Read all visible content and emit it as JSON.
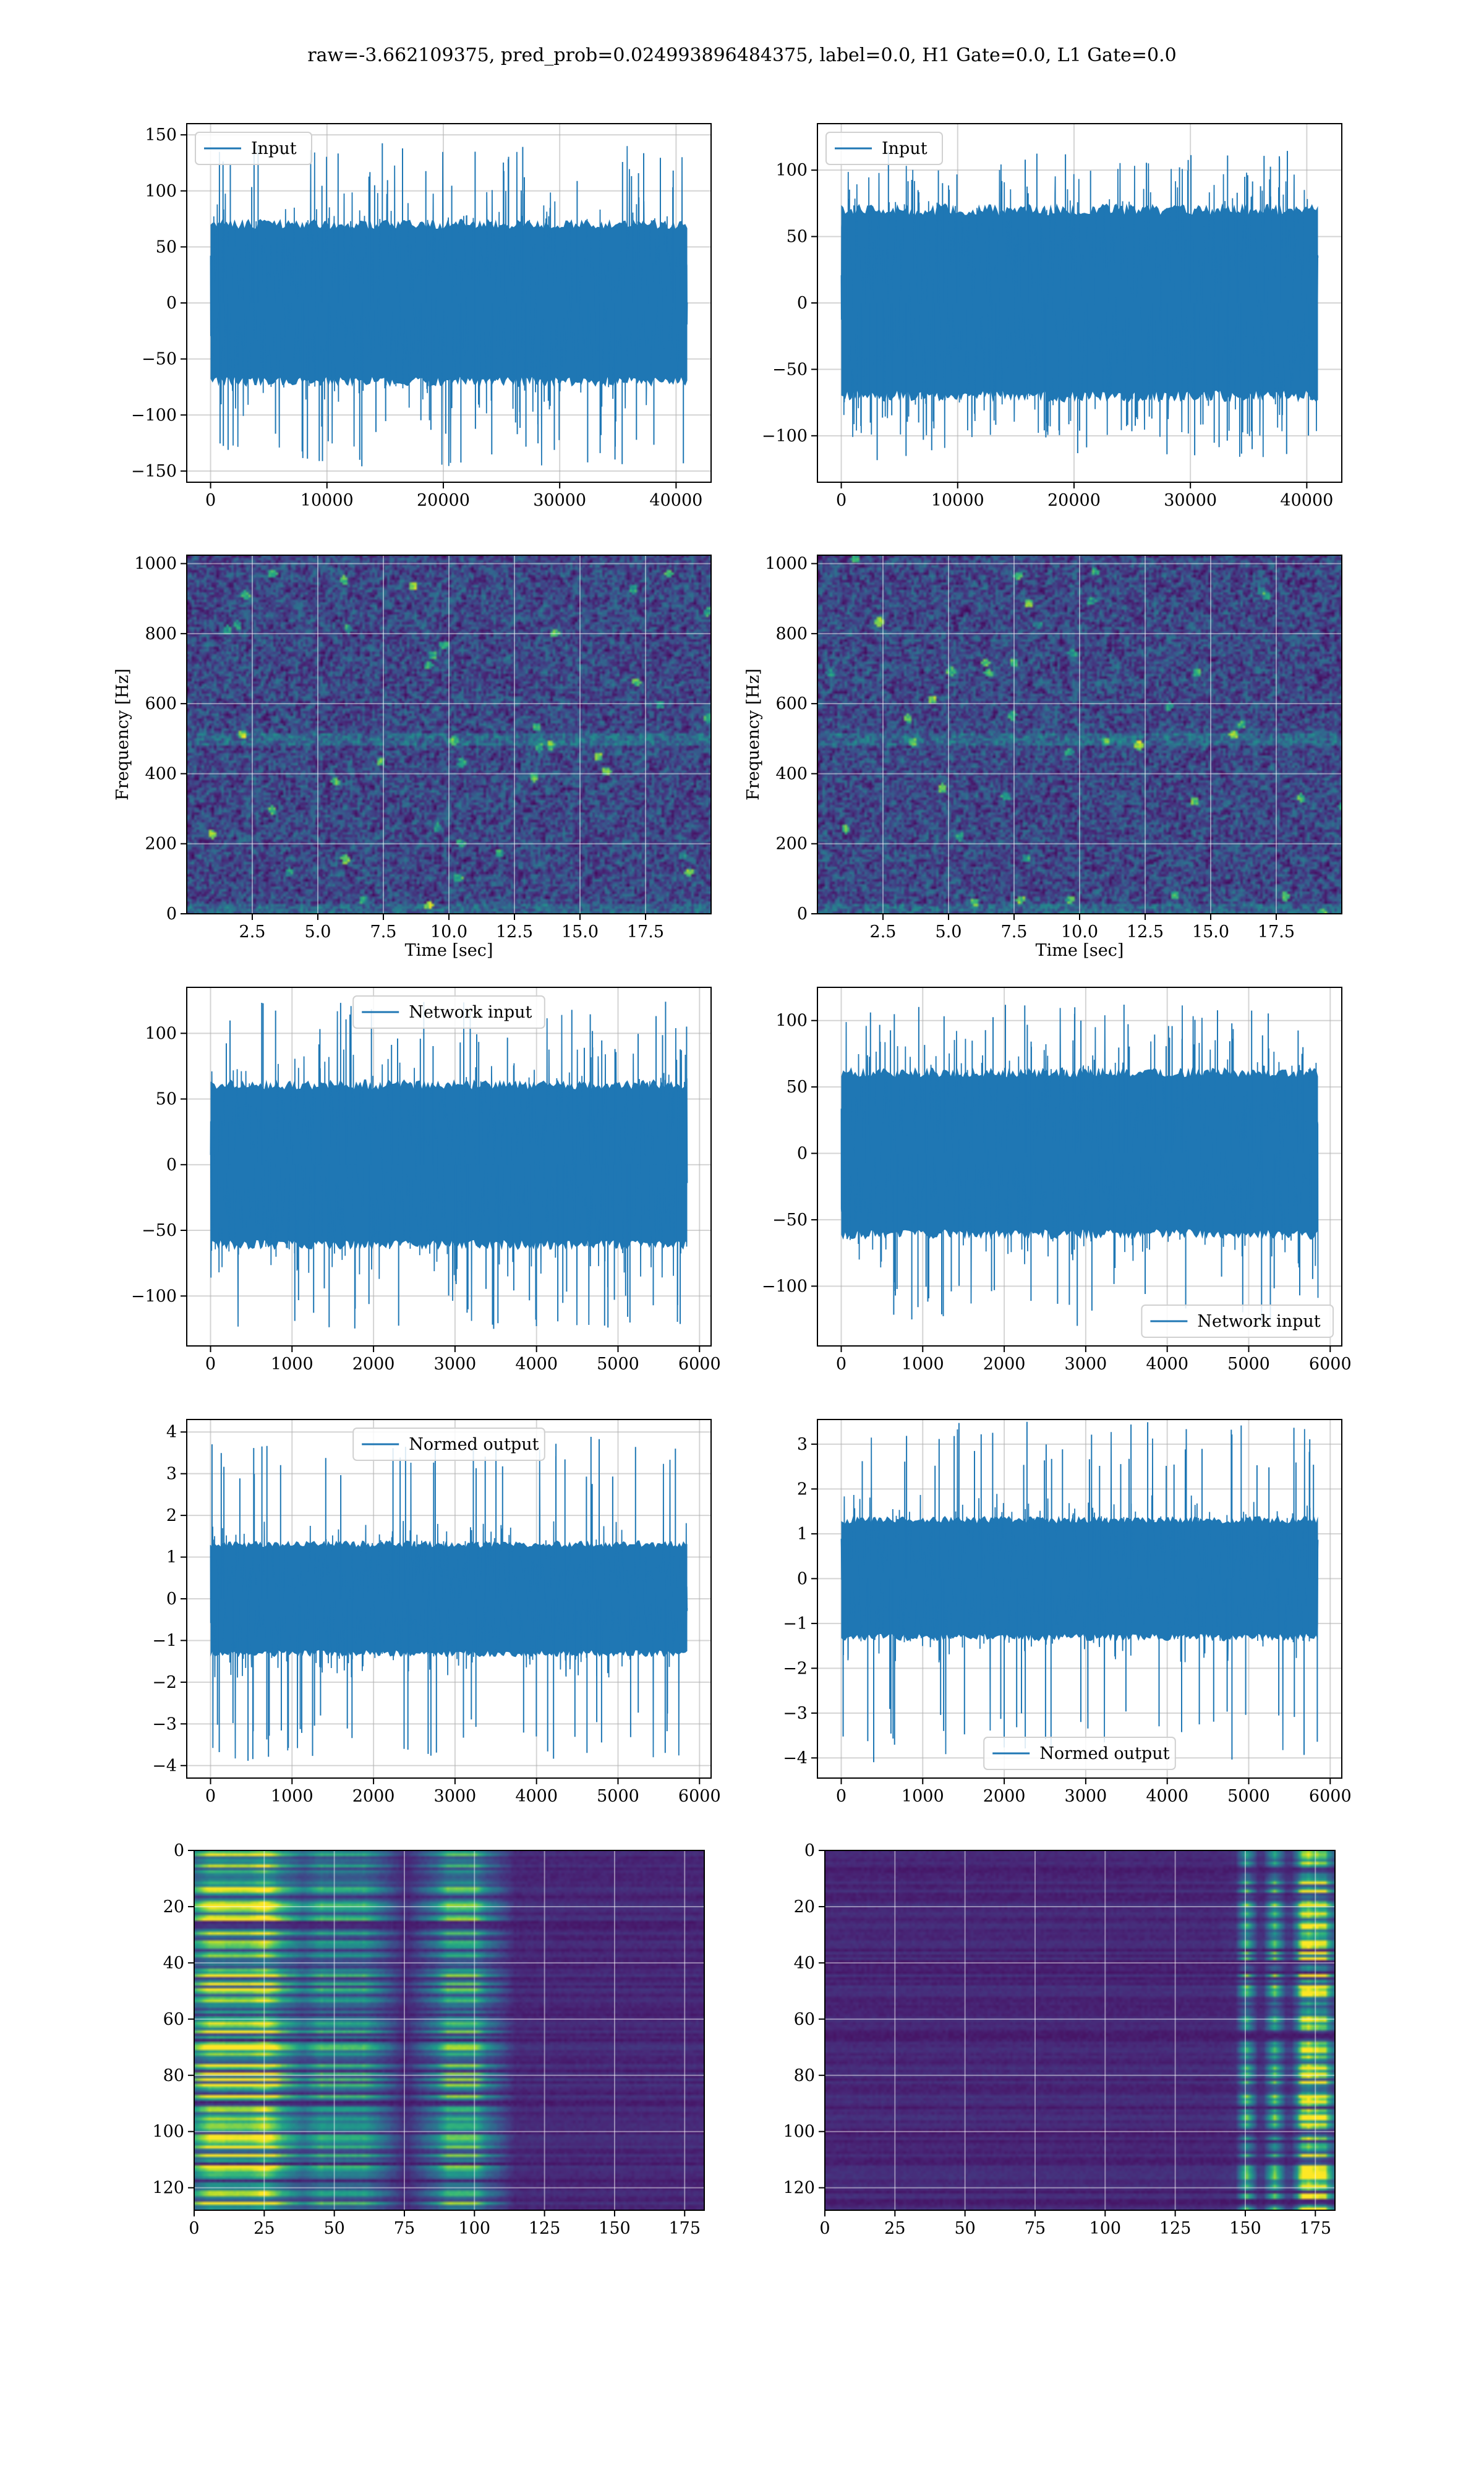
{
  "figure": {
    "title": "raw=-3.662109375, pred_prob=0.024993896484375, label=0.0, H1 Gate=0.0, L1 Gate=0.0",
    "colors": {
      "line": "#1f77b4",
      "grid": "#b0b0b0",
      "viridis": [
        "#440154",
        "#482878",
        "#3e4989",
        "#31688e",
        "#26828e",
        "#1f9e89",
        "#35b779",
        "#6ece58",
        "#b5de2b",
        "#fde725"
      ]
    }
  },
  "chart_data": [
    {
      "id": "input-h1",
      "type": "line",
      "legend_loc": "upper left",
      "grid": true,
      "series": [
        {
          "name": "Input",
          "color": "#1f77b4",
          "x_range": [
            0,
            40960
          ],
          "n_samples": 40960,
          "typical_band": [
            -75,
            75
          ],
          "spike_extremes": [
            -148,
            145
          ]
        }
      ],
      "xlim": [
        -2048,
        43008
      ],
      "ylim": [
        -160,
        160
      ],
      "xticks": [
        0,
        10000,
        20000,
        30000,
        40000
      ],
      "yticks": [
        -150,
        -100,
        -50,
        0,
        50,
        100,
        150
      ],
      "xlabel": "",
      "ylabel": ""
    },
    {
      "id": "input-l1",
      "type": "line",
      "legend_loc": "upper left",
      "grid": true,
      "series": [
        {
          "name": "Input",
          "color": "#1f77b4",
          "x_range": [
            0,
            40960
          ],
          "n_samples": 40960,
          "typical_band": [
            -75,
            75
          ],
          "spike_extremes": [
            -120,
            115
          ]
        }
      ],
      "xlim": [
        -2048,
        43008
      ],
      "ylim": [
        -135,
        135
      ],
      "xticks": [
        0,
        10000,
        20000,
        30000,
        40000
      ],
      "yticks": [
        -100,
        -50,
        0,
        50,
        100
      ],
      "xlabel": "",
      "ylabel": ""
    },
    {
      "id": "spectrogram-h1",
      "type": "heatmap",
      "colormap": "viridis",
      "grid": true,
      "x_range": [
        0,
        20
      ],
      "y_range": [
        0,
        1024
      ],
      "xlim": [
        0,
        20
      ],
      "ylim": [
        0,
        1024
      ],
      "xticks": [
        2.5,
        5.0,
        7.5,
        10.0,
        12.5,
        15.0,
        17.5
      ],
      "yticks": [
        0,
        200,
        400,
        600,
        800,
        1000
      ],
      "xlabel": "Time [sec]",
      "ylabel": "Frequency [Hz]"
    },
    {
      "id": "spectrogram-l1",
      "type": "heatmap",
      "colormap": "viridis",
      "grid": true,
      "x_range": [
        0,
        20
      ],
      "y_range": [
        0,
        1024
      ],
      "xlim": [
        0,
        20
      ],
      "ylim": [
        0,
        1024
      ],
      "xticks": [
        2.5,
        5.0,
        7.5,
        10.0,
        12.5,
        15.0,
        17.5
      ],
      "yticks": [
        0,
        200,
        400,
        600,
        800,
        1000
      ],
      "xlabel": "Time [sec]",
      "ylabel": "Frequency [Hz]"
    },
    {
      "id": "network-input-h1",
      "type": "line",
      "legend_loc": "upper center",
      "grid": true,
      "series": [
        {
          "name": "Network input",
          "color": "#1f77b4",
          "x_range": [
            0,
            5850
          ],
          "n_samples": 5850,
          "typical_band": [
            -65,
            65
          ],
          "spike_extremes": [
            -125,
            125
          ]
        }
      ],
      "xlim": [
        -292,
        6142
      ],
      "ylim": [
        -138,
        135
      ],
      "xticks": [
        0,
        1000,
        2000,
        3000,
        4000,
        5000,
        6000
      ],
      "yticks": [
        -100,
        -50,
        0,
        50,
        100
      ],
      "xlabel": "",
      "ylabel": ""
    },
    {
      "id": "network-input-l1",
      "type": "line",
      "legend_loc": "lower right",
      "grid": true,
      "series": [
        {
          "name": "Network input",
          "color": "#1f77b4",
          "x_range": [
            0,
            5850
          ],
          "n_samples": 5850,
          "typical_band": [
            -65,
            65
          ],
          "spike_extremes": [
            -130,
            112
          ]
        }
      ],
      "xlim": [
        -292,
        6142
      ],
      "ylim": [
        -145,
        125
      ],
      "xticks": [
        0,
        1000,
        2000,
        3000,
        4000,
        5000,
        6000
      ],
      "yticks": [
        -100,
        -50,
        0,
        50,
        100
      ],
      "xlabel": "",
      "ylabel": ""
    },
    {
      "id": "normed-output-h1",
      "type": "line",
      "legend_loc": "upper center",
      "grid": true,
      "series": [
        {
          "name": "Normed output",
          "color": "#1f77b4",
          "x_range": [
            0,
            5850
          ],
          "n_samples": 5850,
          "typical_band": [
            -1.4,
            1.4
          ],
          "spike_extremes": [
            -3.9,
            3.9
          ]
        }
      ],
      "xlim": [
        -292,
        6142
      ],
      "ylim": [
        -4.3,
        4.3
      ],
      "xticks": [
        0,
        1000,
        2000,
        3000,
        4000,
        5000,
        6000
      ],
      "yticks": [
        -4,
        -3,
        -2,
        -1,
        0,
        1,
        2,
        3,
        4
      ],
      "xlabel": "",
      "ylabel": ""
    },
    {
      "id": "normed-output-l1",
      "type": "line",
      "legend_loc": "lower center",
      "grid": true,
      "series": [
        {
          "name": "Normed output",
          "color": "#1f77b4",
          "x_range": [
            0,
            5850
          ],
          "n_samples": 5850,
          "typical_band": [
            -1.4,
            1.4
          ],
          "spike_extremes": [
            -4.1,
            3.5
          ]
        }
      ],
      "xlim": [
        -292,
        6142
      ],
      "ylim": [
        -4.45,
        3.55
      ],
      "xticks": [
        0,
        1000,
        2000,
        3000,
        4000,
        5000,
        6000
      ],
      "yticks": [
        -4,
        -3,
        -2,
        -1,
        0,
        1,
        2,
        3
      ],
      "xlabel": "",
      "ylabel": ""
    },
    {
      "id": "feature-map-h1",
      "type": "heatmap",
      "colormap": "viridis",
      "grid": true,
      "rows": 128,
      "cols": 182,
      "hot_columns": [
        5,
        10,
        24,
        25,
        45,
        60,
        90,
        100
      ],
      "hot_side": "left",
      "xlim": [
        0,
        182
      ],
      "ylim": [
        128,
        0
      ],
      "xticks": [
        0,
        25,
        50,
        75,
        100,
        125,
        150,
        175
      ],
      "yticks": [
        0,
        20,
        40,
        60,
        80,
        100,
        120
      ],
      "xlabel": "",
      "ylabel": ""
    },
    {
      "id": "feature-map-l1",
      "type": "heatmap",
      "colormap": "viridis",
      "grid": true,
      "rows": 128,
      "cols": 182,
      "hot_columns": [
        150,
        160,
        170,
        172,
        175,
        178
      ],
      "hot_side": "right",
      "xlim": [
        0,
        182
      ],
      "ylim": [
        128,
        0
      ],
      "xticks": [
        0,
        25,
        50,
        75,
        100,
        125,
        150,
        175
      ],
      "yticks": [
        0,
        20,
        40,
        60,
        80,
        100,
        120
      ],
      "xlabel": "",
      "ylabel": ""
    }
  ]
}
